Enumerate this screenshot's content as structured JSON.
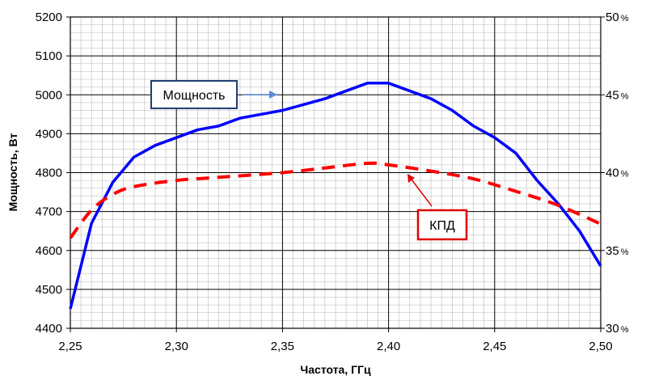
{
  "chart_data": {
    "type": "line",
    "xlabel": "Частота, ГГц",
    "ylabel": "Мощность, Вт",
    "x_ticks": [
      "2,25",
      "2,30",
      "2,35",
      "2,40",
      "2,45",
      "2,50"
    ],
    "y_ticks": [
      "4400",
      "4500",
      "4600",
      "4700",
      "4800",
      "4900",
      "5000",
      "5100",
      "5200"
    ],
    "y2_ticks": [
      "30",
      "35",
      "40",
      "45",
      "50"
    ],
    "y2_unit": "%",
    "xlim": [
      2.25,
      2.5
    ],
    "ylim": [
      4400,
      5200
    ],
    "y2lim": [
      30,
      50
    ],
    "grid": true,
    "series": [
      {
        "name": "Мощность",
        "axis": "left",
        "color": "#0000ff",
        "style": "solid",
        "x": [
          2.25,
          2.26,
          2.27,
          2.28,
          2.29,
          2.3,
          2.31,
          2.32,
          2.33,
          2.34,
          2.35,
          2.36,
          2.37,
          2.38,
          2.39,
          2.4,
          2.41,
          2.42,
          2.43,
          2.44,
          2.45,
          2.46,
          2.47,
          2.48,
          2.49,
          2.5
        ],
        "values": [
          4450,
          4670,
          4775,
          4840,
          4870,
          4890,
          4910,
          4920,
          4940,
          4950,
          4960,
          4975,
          4990,
          5010,
          5030,
          5030,
          5010,
          4990,
          4960,
          4920,
          4890,
          4850,
          4780,
          4720,
          4650,
          4560
        ]
      },
      {
        "name": "КПД",
        "axis": "right",
        "color": "#ff0000",
        "style": "dashed",
        "x": [
          2.25,
          2.26,
          2.27,
          2.28,
          2.3,
          2.32,
          2.35,
          2.37,
          2.39,
          2.4,
          2.42,
          2.44,
          2.46,
          2.48,
          2.5
        ],
        "values": [
          35.8,
          37.6,
          38.6,
          39.1,
          39.5,
          39.7,
          40.0,
          40.3,
          40.6,
          40.5,
          40.1,
          39.6,
          38.8,
          37.9,
          36.7
        ]
      }
    ],
    "callouts": {
      "power_label": "Мощность",
      "efficiency_label": "КПД"
    },
    "colors": {
      "power": "#0000ff",
      "efficiency": "#ff0000",
      "power_arrow": "#5b8bd4",
      "power_box_border": "#1f3f73",
      "efficiency_box_border": "#e00000"
    }
  }
}
